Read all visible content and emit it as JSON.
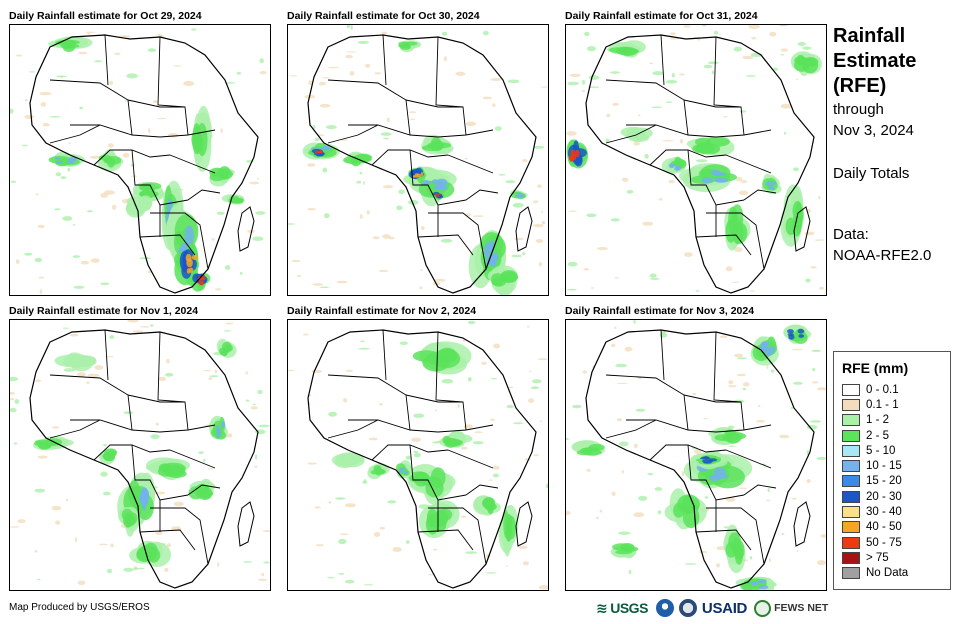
{
  "panels": [
    {
      "title": "Daily Rainfall estimate for Oct 29, 2024"
    },
    {
      "title": "Daily Rainfall estimate for Oct 30, 2024"
    },
    {
      "title": "Daily Rainfall estimate for Oct 31, 2024"
    },
    {
      "title": "Daily Rainfall estimate for Nov 1, 2024"
    },
    {
      "title": "Daily Rainfall estimate for Nov 2, 2024"
    },
    {
      "title": "Daily Rainfall estimate for Nov 3, 2024"
    }
  ],
  "side": {
    "title_line1": "Rainfall",
    "title_line2": "Estimate",
    "title_line3": "(RFE)",
    "through": "through",
    "date": "Nov 3, 2024",
    "totals": "Daily Totals",
    "data_label": "Data:",
    "data_source": "NOAA-RFE2.0"
  },
  "legend": {
    "title": "RFE (mm)",
    "items": [
      {
        "label": "0 - 0.1",
        "color": "#ffffff"
      },
      {
        "label": "0.1 - 1",
        "color": "#f2dcbd"
      },
      {
        "label": "1 - 2",
        "color": "#aaf0aa"
      },
      {
        "label": "2 - 5",
        "color": "#5be35b"
      },
      {
        "label": "5 - 10",
        "color": "#a8e8f5"
      },
      {
        "label": "10 - 15",
        "color": "#73b2ee"
      },
      {
        "label": "15 - 20",
        "color": "#3b8ae6"
      },
      {
        "label": "20 - 30",
        "color": "#1a56c9"
      },
      {
        "label": "30 - 40",
        "color": "#fbe08a"
      },
      {
        "label": "40 - 50",
        "color": "#f6a623"
      },
      {
        "label": "50 - 75",
        "color": "#ee3a10"
      },
      {
        "label": "> 75",
        "color": "#a51414"
      },
      {
        "label": "No Data",
        "color": "#a0a0a0"
      }
    ]
  },
  "footer": {
    "credit": "Map Produced by USGS/EROS",
    "logo_usgs": "USGS",
    "logo_usaid": "USAID",
    "logo_fews": "FEWS NET"
  }
}
